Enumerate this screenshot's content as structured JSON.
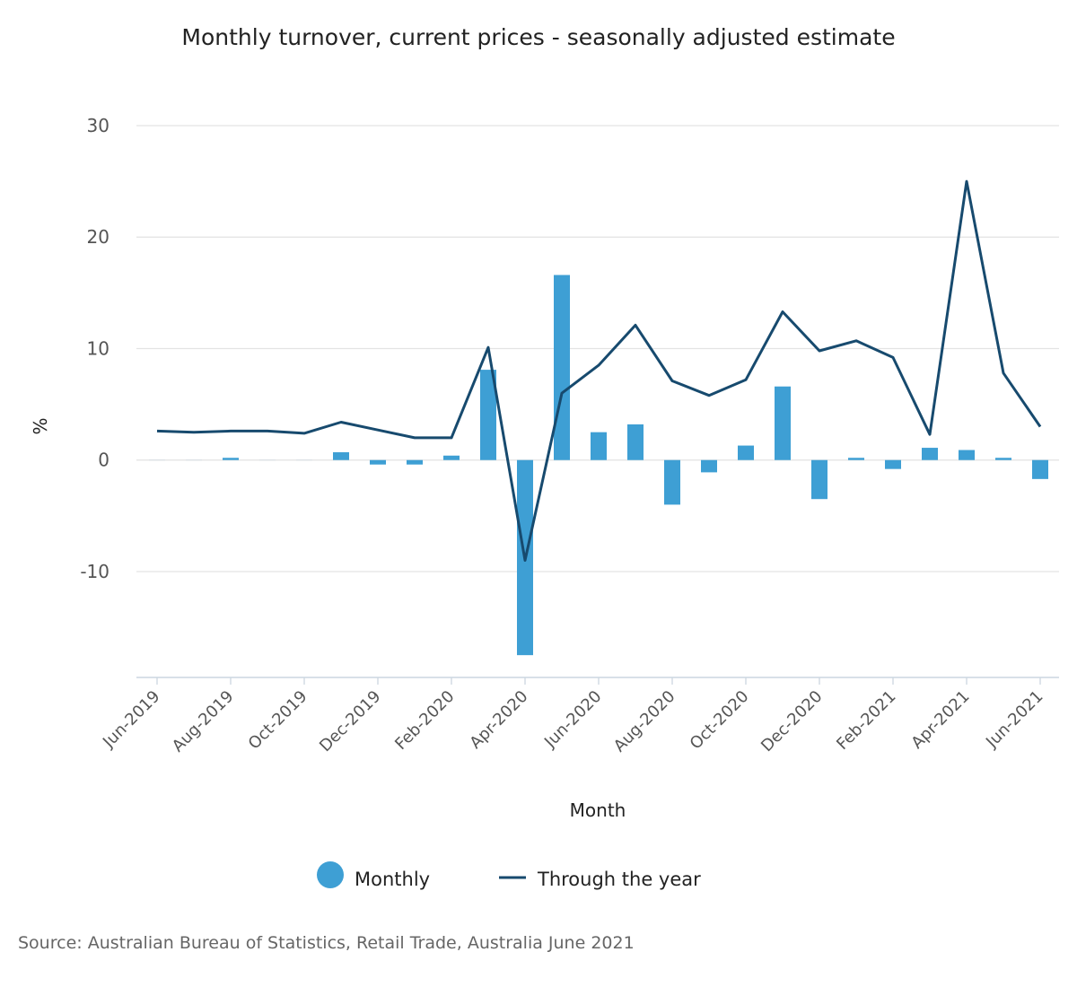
{
  "chart_data": {
    "type": "bar+line",
    "title": "Monthly turnover, current prices - seasonally adjusted estimate",
    "xlabel": "Month",
    "ylabel": "%",
    "ylim": [
      -19.5,
      30
    ],
    "yticks": [
      30,
      20,
      10,
      0,
      -10
    ],
    "categories": [
      "Jun-2019",
      "Jul-2019",
      "Aug-2019",
      "Sep-2019",
      "Oct-2019",
      "Nov-2019",
      "Dec-2019",
      "Jan-2020",
      "Feb-2020",
      "Mar-2020",
      "Apr-2020",
      "May-2020",
      "Jun-2020",
      "Jul-2020",
      "Aug-2020",
      "Sep-2020",
      "Oct-2020",
      "Nov-2020",
      "Dec-2020",
      "Jan-2021",
      "Feb-2021",
      "Mar-2021",
      "Apr-2021",
      "May-2021",
      "Jun-2021"
    ],
    "tick_labels": [
      "Jun-2019",
      "Aug-2019",
      "Oct-2019",
      "Dec-2019",
      "Feb-2020",
      "Apr-2020",
      "Jun-2020",
      "Aug-2020",
      "Oct-2020",
      "Dec-2020",
      "Feb-2021",
      "Apr-2021",
      "Jun-2021"
    ],
    "series": [
      {
        "name": "Monthly",
        "type": "bar",
        "color": "#3e9fd4",
        "values": [
          0.0,
          0.0,
          0.2,
          0.0,
          0.0,
          0.7,
          -0.4,
          -0.4,
          0.4,
          8.1,
          -17.5,
          16.6,
          2.5,
          3.2,
          -4.0,
          -1.1,
          1.3,
          6.6,
          -3.5,
          0.2,
          -0.8,
          1.1,
          0.9,
          0.2,
          -1.7
        ]
      },
      {
        "name": "Through the year",
        "type": "line",
        "color": "#174a6e",
        "values": [
          2.6,
          2.5,
          2.6,
          2.6,
          2.4,
          3.4,
          2.7,
          2.0,
          2.0,
          10.1,
          -9.0,
          6.0,
          8.5,
          12.1,
          7.1,
          5.8,
          7.2,
          13.3,
          9.8,
          10.7,
          9.2,
          2.3,
          25.0,
          7.8,
          3.0
        ]
      }
    ],
    "legend": {
      "position": "bottom-center",
      "monthly_label": "Monthly",
      "through_label": "Through the year"
    },
    "grid": true,
    "source": "Source: Australian Bureau of Statistics, Retail Trade, Australia June 2021"
  }
}
